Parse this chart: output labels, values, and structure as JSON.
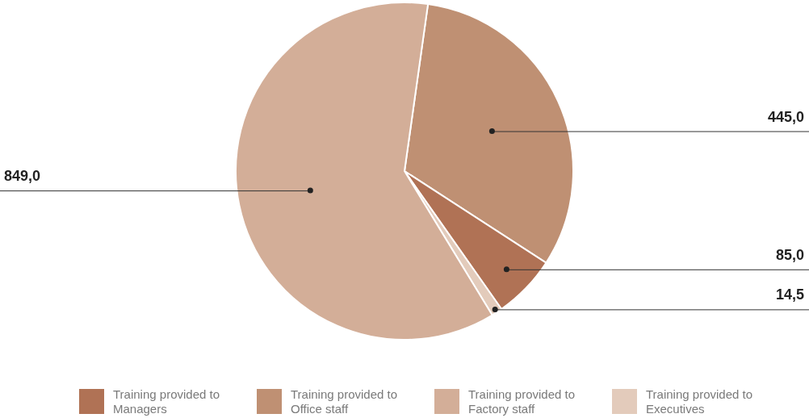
{
  "chart_data": {
    "type": "pie",
    "categories": [
      "Training provided to Office staff",
      "Training provided to Managers",
      "Training provided to Executives",
      "Training provided to Factory staff"
    ],
    "values": [
      445.0,
      85.0,
      14.5,
      849.0
    ],
    "colors": [
      "#bf9073",
      "#b07255",
      "#e3cbbb",
      "#d3ae98"
    ],
    "value_labels": [
      "445,0",
      "85,0",
      "14,5",
      "849,0"
    ],
    "legend": "bottom"
  }
}
